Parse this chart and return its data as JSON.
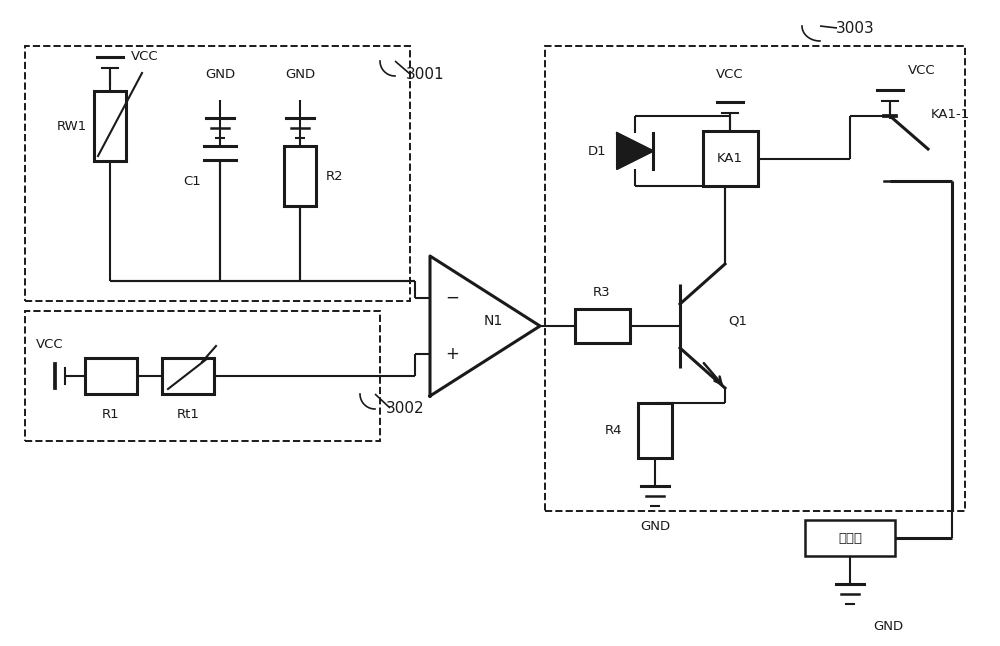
{
  "bg_color": "#ffffff",
  "lc": "#1a1a1a",
  "lw": 1.5,
  "tlw": 2.2,
  "fig_w": 10.0,
  "fig_h": 6.46,
  "labels": {
    "VCC": "VCC",
    "GND": "GND",
    "RW1": "RW1",
    "C1": "C1",
    "R2": "R2",
    "N1": "N1",
    "R1": "R1",
    "Rt1": "Rt1",
    "D1": "D1",
    "KA1": "KA1",
    "KA1_1": "KA1-1",
    "R3": "R3",
    "R4": "R4",
    "Q1": "Q1",
    "box3001": "3001",
    "box3002": "3002",
    "box3003": "3003",
    "valve": "控制阀"
  }
}
